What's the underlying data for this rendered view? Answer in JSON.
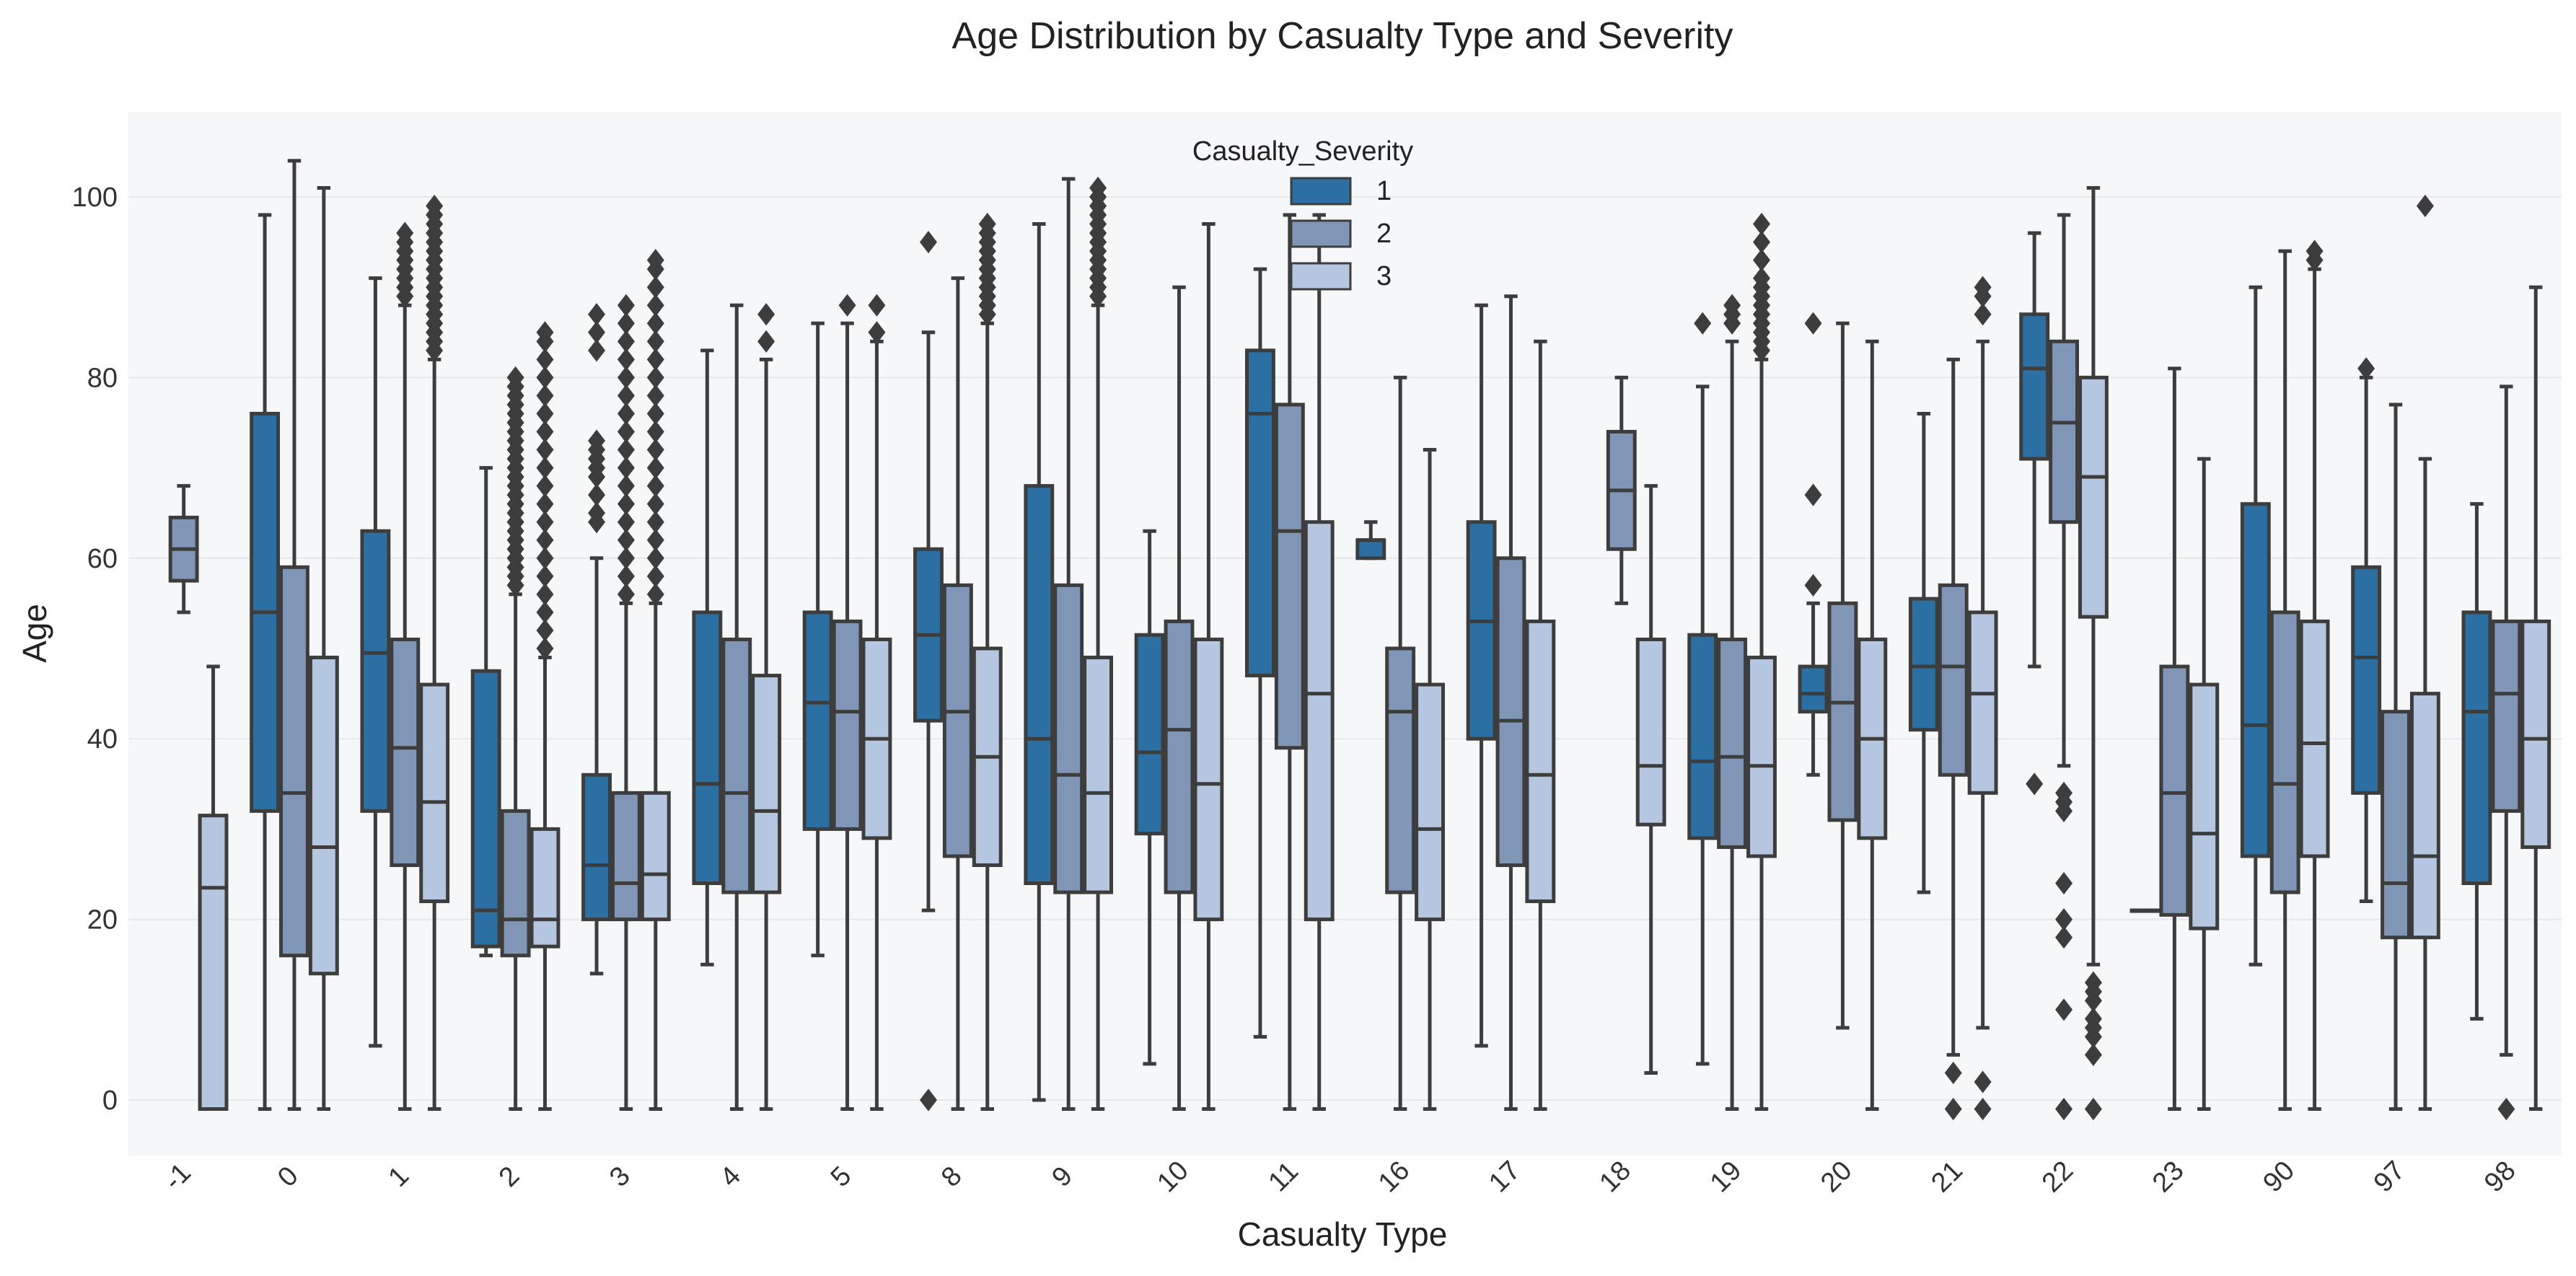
{
  "chart_data": {
    "type": "box",
    "title": "Age Distribution by Casualty Type and Severity",
    "xlabel": "Casualty Type",
    "ylabel": "Age",
    "ylim": [
      -6,
      110
    ],
    "yticks": [
      0,
      20,
      40,
      60,
      80,
      100
    ],
    "grid": true,
    "legend": {
      "title": "Casualty_Severity",
      "placement": "top-center",
      "entries": [
        "1",
        "2",
        "3"
      ]
    },
    "series_colors": {
      "1": "#2b6fa3",
      "2": "#7f96b6",
      "3": "#b4c6e0"
    },
    "categories": [
      "-1",
      "0",
      "1",
      "2",
      "3",
      "4",
      "5",
      "8",
      "9",
      "10",
      "11",
      "16",
      "17",
      "18",
      "19",
      "20",
      "21",
      "22",
      "23",
      "90",
      "97",
      "98"
    ],
    "boxes": [
      {
        "category": "-1",
        "severity": "2",
        "whislo": 54,
        "q1": 57.5,
        "med": 61,
        "q3": 64.5,
        "whishi": 68,
        "fliers": []
      },
      {
        "category": "-1",
        "severity": "3",
        "whislo": -1,
        "q1": -1,
        "med": 23.5,
        "q3": 31.5,
        "whishi": 48,
        "fliers": []
      },
      {
        "category": "0",
        "severity": "1",
        "whislo": -1,
        "q1": 32,
        "med": 54,
        "q3": 76,
        "whishi": 98,
        "fliers": []
      },
      {
        "category": "0",
        "severity": "2",
        "whislo": -1,
        "q1": 16,
        "med": 34,
        "q3": 59,
        "whishi": 104,
        "fliers": []
      },
      {
        "category": "0",
        "severity": "3",
        "whislo": -1,
        "q1": 14,
        "med": 28,
        "q3": 49,
        "whishi": 101,
        "fliers": []
      },
      {
        "category": "1",
        "severity": "1",
        "whislo": 6,
        "q1": 32,
        "med": 49.5,
        "q3": 63,
        "whishi": 91,
        "fliers": []
      },
      {
        "category": "1",
        "severity": "2",
        "whislo": -1,
        "q1": 26,
        "med": 39,
        "q3": 51,
        "whishi": 88,
        "fliers": [
          89,
          90,
          91,
          92,
          93,
          94,
          95,
          96
        ]
      },
      {
        "category": "1",
        "severity": "3",
        "whislo": -1,
        "q1": 22,
        "med": 33,
        "q3": 46,
        "whishi": 82,
        "fliers": [
          83,
          84,
          85,
          86,
          87,
          88,
          89,
          90,
          91,
          92,
          93,
          94,
          95,
          96,
          97,
          98,
          99
        ]
      },
      {
        "category": "2",
        "severity": "1",
        "whislo": 16,
        "q1": 17,
        "med": 21,
        "q3": 47.5,
        "whishi": 70,
        "fliers": []
      },
      {
        "category": "2",
        "severity": "2",
        "whislo": -1,
        "q1": 16,
        "med": 20,
        "q3": 32,
        "whishi": 56,
        "fliers": [
          57,
          58,
          59,
          60,
          61,
          62,
          63,
          64,
          65,
          66,
          67,
          68,
          69,
          70,
          71,
          72,
          73,
          74,
          75,
          76,
          77,
          78,
          79,
          80
        ]
      },
      {
        "category": "2",
        "severity": "3",
        "whislo": -1,
        "q1": 17,
        "med": 20,
        "q3": 30,
        "whishi": 49,
        "fliers": [
          50,
          52,
          54,
          56,
          58,
          60,
          62,
          64,
          66,
          68,
          70,
          72,
          74,
          76,
          78,
          80,
          82,
          84,
          85
        ]
      },
      {
        "category": "3",
        "severity": "1",
        "whislo": 14,
        "q1": 20,
        "med": 26,
        "q3": 36,
        "whishi": 60,
        "fliers": [
          64,
          65,
          67,
          69,
          70,
          71,
          72,
          73,
          83,
          85,
          87
        ]
      },
      {
        "category": "3",
        "severity": "2",
        "whislo": -1,
        "q1": 20,
        "med": 24,
        "q3": 34,
        "whishi": 55,
        "fliers": [
          56,
          58,
          60,
          62,
          64,
          66,
          68,
          70,
          72,
          74,
          76,
          78,
          80,
          82,
          84,
          86,
          88
        ]
      },
      {
        "category": "3",
        "severity": "3",
        "whislo": -1,
        "q1": 20,
        "med": 25,
        "q3": 34,
        "whishi": 55,
        "fliers": [
          56,
          58,
          60,
          62,
          64,
          66,
          68,
          70,
          72,
          74,
          76,
          78,
          80,
          82,
          84,
          86,
          88,
          90,
          92,
          93
        ]
      },
      {
        "category": "4",
        "severity": "1",
        "whislo": 15,
        "q1": 24,
        "med": 35,
        "q3": 54,
        "whishi": 83,
        "fliers": []
      },
      {
        "category": "4",
        "severity": "2",
        "whislo": -1,
        "q1": 23,
        "med": 34,
        "q3": 51,
        "whishi": 88,
        "fliers": []
      },
      {
        "category": "4",
        "severity": "3",
        "whislo": -1,
        "q1": 23,
        "med": 32,
        "q3": 47,
        "whishi": 82,
        "fliers": [
          84,
          87
        ]
      },
      {
        "category": "5",
        "severity": "1",
        "whislo": 16,
        "q1": 30,
        "med": 44,
        "q3": 54,
        "whishi": 86,
        "fliers": []
      },
      {
        "category": "5",
        "severity": "2",
        "whislo": -1,
        "q1": 30,
        "med": 43,
        "q3": 53,
        "whishi": 86,
        "fliers": [
          88
        ]
      },
      {
        "category": "5",
        "severity": "3",
        "whislo": -1,
        "q1": 29,
        "med": 40,
        "q3": 51,
        "whishi": 84,
        "fliers": [
          85,
          88
        ]
      },
      {
        "category": "8",
        "severity": "1",
        "whislo": 21,
        "q1": 42,
        "med": 51.5,
        "q3": 61,
        "whishi": 85,
        "fliers": [
          0,
          95
        ]
      },
      {
        "category": "8",
        "severity": "2",
        "whislo": -1,
        "q1": 27,
        "med": 43,
        "q3": 57,
        "whishi": 91,
        "fliers": []
      },
      {
        "category": "8",
        "severity": "3",
        "whislo": -1,
        "q1": 26,
        "med": 38,
        "q3": 50,
        "whishi": 86,
        "fliers": [
          87,
          88,
          89,
          90,
          91,
          92,
          93,
          94,
          95,
          96,
          97
        ]
      },
      {
        "category": "9",
        "severity": "1",
        "whislo": 0,
        "q1": 24,
        "med": 40,
        "q3": 68,
        "whishi": 97,
        "fliers": []
      },
      {
        "category": "9",
        "severity": "2",
        "whislo": -1,
        "q1": 23,
        "med": 36,
        "q3": 57,
        "whishi": 102,
        "fliers": []
      },
      {
        "category": "9",
        "severity": "3",
        "whislo": -1,
        "q1": 23,
        "med": 34,
        "q3": 49,
        "whishi": 88,
        "fliers": [
          89,
          90,
          91,
          92,
          93,
          94,
          95,
          96,
          97,
          98,
          99,
          100,
          101
        ]
      },
      {
        "category": "10",
        "severity": "1",
        "whislo": 4,
        "q1": 29.5,
        "med": 38.5,
        "q3": 51.5,
        "whishi": 63,
        "fliers": []
      },
      {
        "category": "10",
        "severity": "2",
        "whislo": -1,
        "q1": 23,
        "med": 41,
        "q3": 53,
        "whishi": 90,
        "fliers": []
      },
      {
        "category": "10",
        "severity": "3",
        "whislo": -1,
        "q1": 20,
        "med": 35,
        "q3": 51,
        "whishi": 97,
        "fliers": []
      },
      {
        "category": "11",
        "severity": "1",
        "whislo": 7,
        "q1": 47,
        "med": 76,
        "q3": 83,
        "whishi": 92,
        "fliers": []
      },
      {
        "category": "11",
        "severity": "2",
        "whislo": -1,
        "q1": 39,
        "med": 63,
        "q3": 77,
        "whishi": 98,
        "fliers": []
      },
      {
        "category": "11",
        "severity": "3",
        "whislo": -1,
        "q1": 20,
        "med": 45,
        "q3": 64,
        "whishi": 98,
        "fliers": []
      },
      {
        "category": "16",
        "severity": "1",
        "whislo": 60,
        "q1": 60,
        "med": 62,
        "q3": 62,
        "whishi": 64,
        "fliers": []
      },
      {
        "category": "16",
        "severity": "2",
        "whislo": -1,
        "q1": 23,
        "med": 43,
        "q3": 50,
        "whishi": 80,
        "fliers": []
      },
      {
        "category": "16",
        "severity": "3",
        "whislo": -1,
        "q1": 20,
        "med": 30,
        "q3": 46,
        "whishi": 72,
        "fliers": []
      },
      {
        "category": "17",
        "severity": "1",
        "whislo": 6,
        "q1": 40,
        "med": 53,
        "q3": 64,
        "whishi": 88,
        "fliers": []
      },
      {
        "category": "17",
        "severity": "2",
        "whislo": -1,
        "q1": 26,
        "med": 42,
        "q3": 60,
        "whishi": 89,
        "fliers": []
      },
      {
        "category": "17",
        "severity": "3",
        "whislo": -1,
        "q1": 22,
        "med": 36,
        "q3": 53,
        "whishi": 84,
        "fliers": []
      },
      {
        "category": "18",
        "severity": "2",
        "whislo": 55,
        "q1": 61,
        "med": 67.5,
        "q3": 74,
        "whishi": 80,
        "fliers": []
      },
      {
        "category": "18",
        "severity": "3",
        "whislo": 3,
        "q1": 30.5,
        "med": 37,
        "q3": 51,
        "whishi": 68,
        "fliers": []
      },
      {
        "category": "19",
        "severity": "1",
        "whislo": 4,
        "q1": 29,
        "med": 37.5,
        "q3": 51.5,
        "whishi": 79,
        "fliers": [
          86
        ]
      },
      {
        "category": "19",
        "severity": "2",
        "whislo": -1,
        "q1": 28,
        "med": 38,
        "q3": 51,
        "whishi": 84,
        "fliers": [
          86,
          87,
          88
        ]
      },
      {
        "category": "19",
        "severity": "3",
        "whislo": -1,
        "q1": 27,
        "med": 37,
        "q3": 49,
        "whishi": 82,
        "fliers": [
          83,
          84,
          85,
          86,
          87,
          88,
          89,
          90,
          91,
          93,
          95,
          97
        ]
      },
      {
        "category": "20",
        "severity": "1",
        "whislo": 36,
        "q1": 43,
        "med": 45,
        "q3": 48,
        "whishi": 55,
        "fliers": [
          57,
          67,
          86
        ]
      },
      {
        "category": "20",
        "severity": "2",
        "whislo": 8,
        "q1": 31,
        "med": 44,
        "q3": 55,
        "whishi": 86,
        "fliers": []
      },
      {
        "category": "20",
        "severity": "3",
        "whislo": -1,
        "q1": 29,
        "med": 40,
        "q3": 51,
        "whishi": 84,
        "fliers": []
      },
      {
        "category": "21",
        "severity": "1",
        "whislo": 23,
        "q1": 41,
        "med": 48,
        "q3": 55.5,
        "whishi": 76,
        "fliers": []
      },
      {
        "category": "21",
        "severity": "2",
        "whislo": 5,
        "q1": 36,
        "med": 48,
        "q3": 57,
        "whishi": 82,
        "fliers": [
          -1,
          3
        ]
      },
      {
        "category": "21",
        "severity": "3",
        "whislo": 8,
        "q1": 34,
        "med": 45,
        "q3": 54,
        "whishi": 84,
        "fliers": [
          -1,
          2,
          87,
          89,
          90
        ]
      },
      {
        "category": "22",
        "severity": "1",
        "whislo": 48,
        "q1": 71,
        "med": 81,
        "q3": 87,
        "whishi": 96,
        "fliers": [
          35
        ]
      },
      {
        "category": "22",
        "severity": "2",
        "whislo": 37,
        "q1": 64,
        "med": 75,
        "q3": 84,
        "whishi": 98,
        "fliers": [
          -1,
          10,
          18,
          20,
          24,
          32,
          33,
          34
        ]
      },
      {
        "category": "22",
        "severity": "3",
        "whislo": 15,
        "q1": 53.5,
        "med": 69,
        "q3": 80,
        "whishi": 101,
        "fliers": [
          -1,
          5,
          7,
          8,
          9,
          11,
          12,
          13
        ]
      },
      {
        "category": "23",
        "severity": "1",
        "whislo": 21,
        "q1": 21,
        "med": 21,
        "q3": 21,
        "whishi": 21,
        "fliers": []
      },
      {
        "category": "23",
        "severity": "2",
        "whislo": -1,
        "q1": 20.5,
        "med": 34,
        "q3": 48,
        "whishi": 81,
        "fliers": []
      },
      {
        "category": "23",
        "severity": "3",
        "whislo": -1,
        "q1": 19,
        "med": 29.5,
        "q3": 46,
        "whishi": 71,
        "fliers": []
      },
      {
        "category": "90",
        "severity": "1",
        "whislo": 15,
        "q1": 27,
        "med": 41.5,
        "q3": 66,
        "whishi": 90,
        "fliers": []
      },
      {
        "category": "90",
        "severity": "2",
        "whislo": -1,
        "q1": 23,
        "med": 35,
        "q3": 54,
        "whishi": 94,
        "fliers": []
      },
      {
        "category": "90",
        "severity": "3",
        "whislo": -1,
        "q1": 27,
        "med": 39.5,
        "q3": 53,
        "whishi": 92,
        "fliers": [
          93,
          94
        ]
      },
      {
        "category": "97",
        "severity": "1",
        "whislo": 22,
        "q1": 34,
        "med": 49,
        "q3": 59,
        "whishi": 80,
        "fliers": [
          81
        ]
      },
      {
        "category": "97",
        "severity": "2",
        "whislo": -1,
        "q1": 18,
        "med": 24,
        "q3": 43,
        "whishi": 77,
        "fliers": []
      },
      {
        "category": "97",
        "severity": "3",
        "whislo": -1,
        "q1": 18,
        "med": 27,
        "q3": 45,
        "whishi": 71,
        "fliers": [
          99
        ]
      },
      {
        "category": "98",
        "severity": "1",
        "whislo": 9,
        "q1": 24,
        "med": 43,
        "q3": 54,
        "whishi": 66,
        "fliers": []
      },
      {
        "category": "98",
        "severity": "2",
        "whislo": 5,
        "q1": 32,
        "med": 45,
        "q3": 53,
        "whishi": 79,
        "fliers": [
          -1
        ]
      },
      {
        "category": "98",
        "severity": "3",
        "whislo": -1,
        "q1": 28,
        "med": 40,
        "q3": 53,
        "whishi": 90,
        "fliers": []
      }
    ]
  }
}
